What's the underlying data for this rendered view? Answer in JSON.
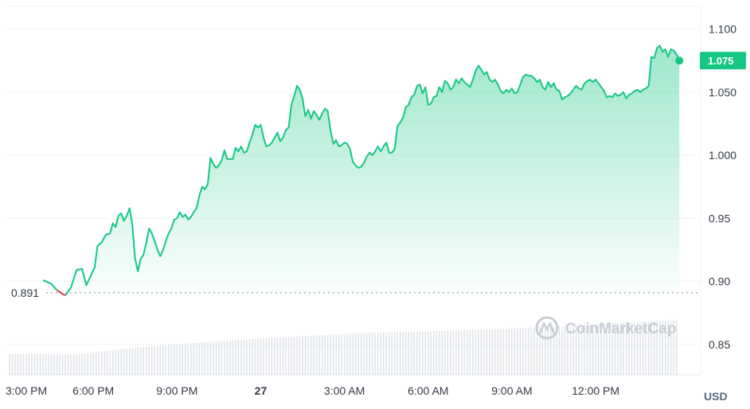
{
  "chart_data": {
    "type": "line",
    "currency_label": "USD",
    "watermark": "CoinMarketCap",
    "reference_value": 0.891,
    "reference_label": "0.891",
    "current_value": 1.075,
    "current_label": "1.075",
    "ylim": [
      0.826,
      1.118
    ],
    "yticks": [
      {
        "value": 1.1,
        "label": "1.100"
      },
      {
        "value": 1.05,
        "label": "1.050"
      },
      {
        "value": 1.0,
        "label": "1.000"
      },
      {
        "value": 0.95,
        "label": "0.95"
      },
      {
        "value": 0.9,
        "label": "0.90"
      },
      {
        "value": 0.85,
        "label": "0.85"
      }
    ],
    "xlim": [
      0,
      24.25
    ],
    "xticks": [
      {
        "hour": 0,
        "label": "3:00 PM",
        "bold": false
      },
      {
        "hour": 3,
        "label": "6:00 PM",
        "bold": false
      },
      {
        "hour": 6,
        "label": "9:00 PM",
        "bold": false
      },
      {
        "hour": 9,
        "label": "27",
        "bold": true
      },
      {
        "hour": 12,
        "label": "3:00 AM",
        "bold": false
      },
      {
        "hour": 15,
        "label": "6:00 AM",
        "bold": false
      },
      {
        "hour": 18,
        "label": "9:00 AM",
        "bold": false
      },
      {
        "hour": 21,
        "label": "12:00 PM",
        "bold": false
      }
    ],
    "colors": {
      "up": "#16c784",
      "down": "#ea3943",
      "reference": "#8f959e",
      "volume": "#dde1e6"
    },
    "price_series": {
      "name": "price",
      "points": [
        [
          1.2,
          0.901
        ],
        [
          1.5,
          0.898
        ],
        [
          1.7,
          0.893
        ],
        [
          1.9,
          0.89
        ],
        [
          2.0,
          0.889
        ],
        [
          2.2,
          0.895
        ],
        [
          2.4,
          0.909
        ],
        [
          2.6,
          0.91
        ],
        [
          2.75,
          0.897
        ],
        [
          2.9,
          0.904
        ],
        [
          3.05,
          0.911
        ],
        [
          3.15,
          0.928
        ],
        [
          3.3,
          0.931
        ],
        [
          3.45,
          0.937
        ],
        [
          3.6,
          0.938
        ],
        [
          3.7,
          0.946
        ],
        [
          3.8,
          0.943
        ],
        [
          3.9,
          0.952
        ],
        [
          4.0,
          0.954
        ],
        [
          4.1,
          0.948
        ],
        [
          4.2,
          0.952
        ],
        [
          4.3,
          0.958
        ],
        [
          4.4,
          0.945
        ],
        [
          4.5,
          0.918
        ],
        [
          4.6,
          0.908
        ],
        [
          4.7,
          0.918
        ],
        [
          4.8,
          0.921
        ],
        [
          4.9,
          0.931
        ],
        [
          5.0,
          0.942
        ],
        [
          5.1,
          0.938
        ],
        [
          5.2,
          0.932
        ],
        [
          5.3,
          0.925
        ],
        [
          5.4,
          0.92
        ],
        [
          5.5,
          0.925
        ],
        [
          5.6,
          0.932
        ],
        [
          5.7,
          0.938
        ],
        [
          5.8,
          0.942
        ],
        [
          5.9,
          0.949
        ],
        [
          6.0,
          0.95
        ],
        [
          6.1,
          0.955
        ],
        [
          6.2,
          0.951
        ],
        [
          6.3,
          0.953
        ],
        [
          6.4,
          0.949
        ],
        [
          6.5,
          0.951
        ],
        [
          6.6,
          0.955
        ],
        [
          6.7,
          0.958
        ],
        [
          6.8,
          0.968
        ],
        [
          6.9,
          0.975
        ],
        [
          7.0,
          0.973
        ],
        [
          7.1,
          0.977
        ],
        [
          7.2,
          0.998
        ],
        [
          7.3,
          0.993
        ],
        [
          7.4,
          0.99
        ],
        [
          7.5,
          0.992
        ],
        [
          7.6,
          0.996
        ],
        [
          7.7,
          1.004
        ],
        [
          7.8,
          0.997
        ],
        [
          8.0,
          0.997
        ],
        [
          8.1,
          1.006
        ],
        [
          8.2,
          1.003
        ],
        [
          8.3,
          1.007
        ],
        [
          8.4,
          1.002
        ],
        [
          8.5,
          1.003
        ],
        [
          8.6,
          1.01
        ],
        [
          8.7,
          1.016
        ],
        [
          8.8,
          1.024
        ],
        [
          8.9,
          1.022
        ],
        [
          9.0,
          1.024
        ],
        [
          9.1,
          1.014
        ],
        [
          9.2,
          1.007
        ],
        [
          9.3,
          1.008
        ],
        [
          9.4,
          1.01
        ],
        [
          9.5,
          1.014
        ],
        [
          9.6,
          1.018
        ],
        [
          9.7,
          1.011
        ],
        [
          9.8,
          1.014
        ],
        [
          9.9,
          1.02
        ],
        [
          10.0,
          1.022
        ],
        [
          10.1,
          1.04
        ],
        [
          10.2,
          1.047
        ],
        [
          10.3,
          1.055
        ],
        [
          10.4,
          1.052
        ],
        [
          10.5,
          1.045
        ],
        [
          10.6,
          1.031
        ],
        [
          10.7,
          1.036
        ],
        [
          10.8,
          1.029
        ],
        [
          10.9,
          1.035
        ],
        [
          11.0,
          1.032
        ],
        [
          11.1,
          1.028
        ],
        [
          11.2,
          1.033
        ],
        [
          11.3,
          1.037
        ],
        [
          11.4,
          1.035
        ],
        [
          11.5,
          1.02
        ],
        [
          11.6,
          1.009
        ],
        [
          11.7,
          1.012
        ],
        [
          11.8,
          1.007
        ],
        [
          11.9,
          1.008
        ],
        [
          12.0,
          1.01
        ],
        [
          12.1,
          1.009
        ],
        [
          12.2,
          1.005
        ],
        [
          12.3,
          0.995
        ],
        [
          12.4,
          0.992
        ],
        [
          12.5,
          0.99
        ],
        [
          12.6,
          0.991
        ],
        [
          12.7,
          0.994
        ],
        [
          12.8,
          0.999
        ],
        [
          12.9,
          1.002
        ],
        [
          13.0,
          1.0
        ],
        [
          13.1,
          1.003
        ],
        [
          13.2,
          1.007
        ],
        [
          13.3,
          1.003
        ],
        [
          13.4,
          1.007
        ],
        [
          13.5,
          1.01
        ],
        [
          13.6,
          1.002
        ],
        [
          13.7,
          1.002
        ],
        [
          13.8,
          1.005
        ],
        [
          13.9,
          1.023
        ],
        [
          14.0,
          1.026
        ],
        [
          14.1,
          1.03
        ],
        [
          14.2,
          1.038
        ],
        [
          14.3,
          1.04
        ],
        [
          14.4,
          1.046
        ],
        [
          14.5,
          1.048
        ],
        [
          14.6,
          1.055
        ],
        [
          14.7,
          1.056
        ],
        [
          14.8,
          1.049
        ],
        [
          14.9,
          1.054
        ],
        [
          15.0,
          1.04
        ],
        [
          15.1,
          1.041
        ],
        [
          15.2,
          1.046
        ],
        [
          15.3,
          1.047
        ],
        [
          15.4,
          1.054
        ],
        [
          15.5,
          1.05
        ],
        [
          15.6,
          1.059
        ],
        [
          15.7,
          1.057
        ],
        [
          15.8,
          1.052
        ],
        [
          15.9,
          1.054
        ],
        [
          16.0,
          1.06
        ],
        [
          16.1,
          1.057
        ],
        [
          16.2,
          1.061
        ],
        [
          16.3,
          1.058
        ],
        [
          16.4,
          1.056
        ],
        [
          16.5,
          1.054
        ],
        [
          16.6,
          1.06
        ],
        [
          16.7,
          1.067
        ],
        [
          16.8,
          1.071
        ],
        [
          16.9,
          1.068
        ],
        [
          17.0,
          1.064
        ],
        [
          17.1,
          1.066
        ],
        [
          17.2,
          1.06
        ],
        [
          17.3,
          1.058
        ],
        [
          17.4,
          1.06
        ],
        [
          17.5,
          1.056
        ],
        [
          17.6,
          1.051
        ],
        [
          17.7,
          1.049
        ],
        [
          17.8,
          1.052
        ],
        [
          17.9,
          1.05
        ],
        [
          18.0,
          1.053
        ],
        [
          18.1,
          1.049
        ],
        [
          18.2,
          1.05
        ],
        [
          18.3,
          1.056
        ],
        [
          18.4,
          1.062
        ],
        [
          18.5,
          1.064
        ],
        [
          18.6,
          1.063
        ],
        [
          18.7,
          1.063
        ],
        [
          18.8,
          1.061
        ],
        [
          18.9,
          1.058
        ],
        [
          19.0,
          1.06
        ],
        [
          19.1,
          1.054
        ],
        [
          19.2,
          1.052
        ],
        [
          19.3,
          1.058
        ],
        [
          19.4,
          1.054
        ],
        [
          19.5,
          1.057
        ],
        [
          19.6,
          1.052
        ],
        [
          19.7,
          1.051
        ],
        [
          19.8,
          1.044
        ],
        [
          19.9,
          1.046
        ],
        [
          20.0,
          1.047
        ],
        [
          20.1,
          1.049
        ],
        [
          20.2,
          1.052
        ],
        [
          20.3,
          1.055
        ],
        [
          20.4,
          1.053
        ],
        [
          20.5,
          1.052
        ],
        [
          20.6,
          1.057
        ],
        [
          20.7,
          1.059
        ],
        [
          20.8,
          1.06
        ],
        [
          20.9,
          1.058
        ],
        [
          21.0,
          1.06
        ],
        [
          21.1,
          1.057
        ],
        [
          21.2,
          1.054
        ],
        [
          21.3,
          1.051
        ],
        [
          21.4,
          1.046
        ],
        [
          21.5,
          1.047
        ],
        [
          21.6,
          1.046
        ],
        [
          21.7,
          1.049
        ],
        [
          21.8,
          1.047
        ],
        [
          21.9,
          1.048
        ],
        [
          22.0,
          1.05
        ],
        [
          22.1,
          1.045
        ],
        [
          22.2,
          1.048
        ],
        [
          22.3,
          1.049
        ],
        [
          22.4,
          1.051
        ],
        [
          22.5,
          1.052
        ],
        [
          22.6,
          1.05
        ],
        [
          22.7,
          1.052
        ],
        [
          22.8,
          1.053
        ],
        [
          22.9,
          1.055
        ],
        [
          23.0,
          1.078
        ],
        [
          23.1,
          1.077
        ],
        [
          23.2,
          1.085
        ],
        [
          23.3,
          1.087
        ],
        [
          23.4,
          1.082
        ],
        [
          23.5,
          1.084
        ],
        [
          23.6,
          1.078
        ],
        [
          23.7,
          1.084
        ],
        [
          23.8,
          1.083
        ],
        [
          23.9,
          1.08
        ],
        [
          24.0,
          1.075
        ]
      ]
    },
    "volume_series": {
      "name": "volume",
      "start": 0,
      "end": 23.9,
      "step": 0.1,
      "min": 0.045,
      "max": 1,
      "profile": [
        [
          0,
          0.38
        ],
        [
          2.4,
          0.37
        ],
        [
          3.6,
          0.45
        ],
        [
          6.6,
          0.58
        ],
        [
          9.6,
          0.68
        ],
        [
          12.6,
          0.76
        ],
        [
          15.6,
          0.8
        ],
        [
          17.9,
          0.84
        ],
        [
          23.9,
          1.0
        ]
      ]
    }
  }
}
